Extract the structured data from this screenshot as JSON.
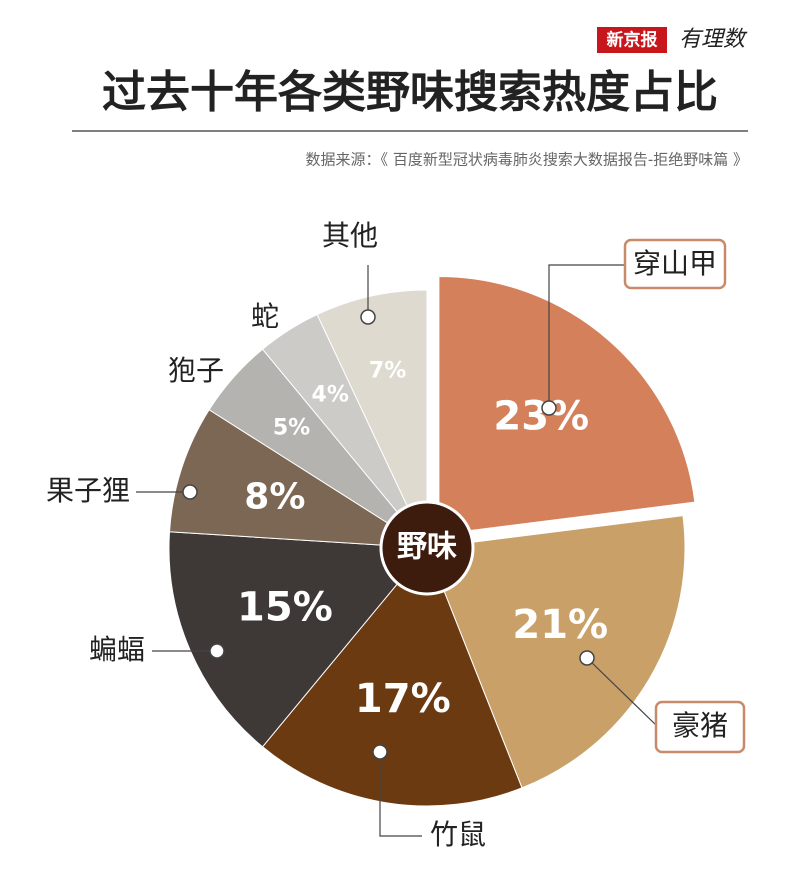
{
  "chart_data": {
    "type": "pie",
    "title": "过去十年各类野味搜索热度占比",
    "source": "数据来源：《 百度新型冠状病毒肺炎搜索大数据报告-拒绝野味篇 》",
    "brand": "新京报",
    "column": "有理数",
    "center_label": "野味",
    "categories": [
      "穿山甲",
      "豪猪",
      "竹鼠",
      "蝙蝠",
      "果子狸",
      "狍子",
      "蛇",
      "其他"
    ],
    "values": [
      23,
      21,
      17,
      15,
      8,
      5,
      4,
      7
    ],
    "value_labels": [
      "23%",
      "21%",
      "17%",
      "15%",
      "8%",
      "5%",
      "4%",
      "7%"
    ],
    "colors": [
      "#d4805a",
      "#c9a068",
      "#6b3a10",
      "#3e3836",
      "#7b6753",
      "#b5b3b0",
      "#cccbc7",
      "#dedad0"
    ]
  }
}
